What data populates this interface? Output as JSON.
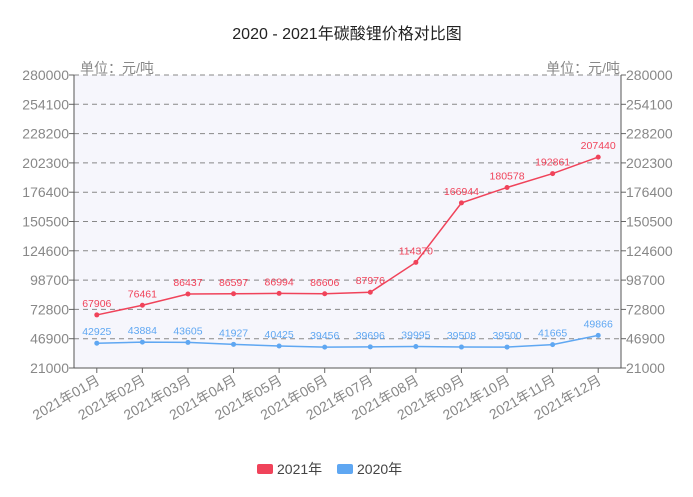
{
  "chart_data": {
    "type": "line",
    "title": "2020 - 2021年碳酸锂价格对比图",
    "unit_label": "单位：元/吨",
    "categories": [
      "2021年01月",
      "2021年02月",
      "2021年03月",
      "2021年04月",
      "2021年05月",
      "2021年06月",
      "2021年07月",
      "2021年08月",
      "2021年09月",
      "2021年10月",
      "2021年11月",
      "2021年12月"
    ],
    "y_ticks": [
      "21000",
      "46900",
      "72800",
      "98700",
      "124600",
      "150500",
      "176400",
      "202300",
      "228200",
      "254100",
      "280000"
    ],
    "ylim": [
      21000,
      280000
    ],
    "grid": true,
    "legend_position": "bottom-center",
    "series": [
      {
        "name": "2021年",
        "color": "#f0435a",
        "values": [
          67906,
          76461,
          86437,
          86597,
          86994,
          86606,
          87976,
          114370,
          166944,
          180578,
          192861,
          207440
        ]
      },
      {
        "name": "2020年",
        "color": "#5fa7f2",
        "values": [
          42925,
          43884,
          43605,
          41927,
          40425,
          39456,
          39696,
          39995,
          39508,
          39500,
          41665,
          49866
        ]
      }
    ]
  }
}
